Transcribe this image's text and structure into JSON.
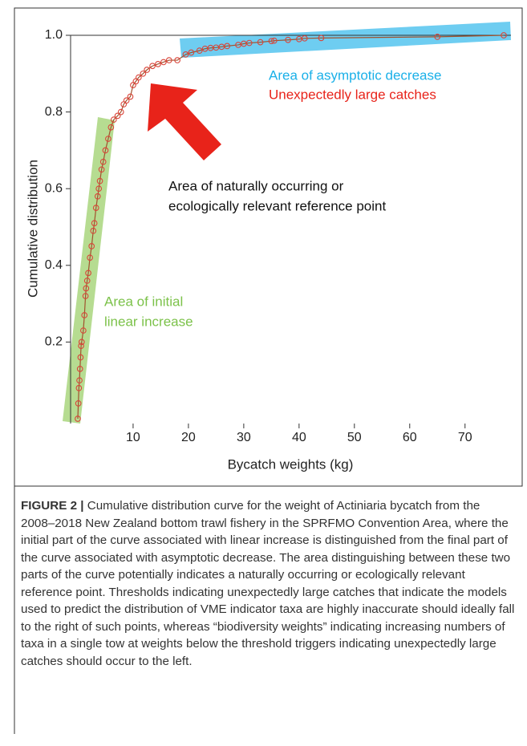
{
  "chart_data": {
    "type": "line",
    "x_label": "Bycatch weights (kg)",
    "y_label": "Cumulative distribution",
    "series": [
      {
        "color": "#d9453a",
        "line_color": "#a0522d",
        "x": [
          0.0,
          0.1,
          0.2,
          0.3,
          0.4,
          0.5,
          0.6,
          0.7,
          1.0,
          1.2,
          1.4,
          1.5,
          1.7,
          1.9,
          2.2,
          2.5,
          2.8,
          3.0,
          3.3,
          3.6,
          3.8,
          4.0,
          4.3,
          4.6,
          5.0,
          5.5,
          6.0,
          6.5,
          7.2,
          7.8,
          8.3,
          8.8,
          9.5,
          10.0,
          10.5,
          11.0,
          11.8,
          12.5,
          13.5,
          14.5,
          15.5,
          16.5,
          18.0,
          19.5,
          20.5,
          22.0,
          23.0,
          24.0,
          25.0,
          26.0,
          27.0,
          29.0,
          30.0,
          31.0,
          33.0,
          35.0,
          35.5,
          38.0,
          40.0,
          41.0,
          44.0,
          65.0,
          77.0
        ],
        "values": [
          0.0,
          0.04,
          0.08,
          0.1,
          0.13,
          0.16,
          0.19,
          0.2,
          0.23,
          0.27,
          0.32,
          0.34,
          0.36,
          0.38,
          0.42,
          0.45,
          0.49,
          0.51,
          0.55,
          0.58,
          0.6,
          0.62,
          0.65,
          0.67,
          0.7,
          0.73,
          0.76,
          0.78,
          0.79,
          0.8,
          0.82,
          0.83,
          0.84,
          0.87,
          0.88,
          0.89,
          0.9,
          0.91,
          0.92,
          0.925,
          0.93,
          0.935,
          0.935,
          0.95,
          0.955,
          0.96,
          0.965,
          0.967,
          0.968,
          0.97,
          0.972,
          0.975,
          0.978,
          0.98,
          0.982,
          0.985,
          0.986,
          0.988,
          0.99,
          0.992,
          0.993,
          0.996,
          1.0
        ]
      }
    ],
    "xlim": [
      -1.3,
      78.3
    ],
    "ylim": [
      0,
      1
    ],
    "xticks": [
      10,
      20,
      30,
      40,
      50,
      60,
      70
    ],
    "yticks": [
      0.2,
      0.4,
      0.6,
      0.8,
      {
        "value": 1,
        "label": "1.0"
      }
    ],
    "annotations": [
      {
        "lines": [
          "Area of asymptotic decrease"
        ],
        "color": "#1ab0e8"
      },
      {
        "lines": [
          "Unexpectedly large catches"
        ],
        "color": "#e8231a"
      },
      {
        "lines": [
          "Area of naturally occurring or",
          "ecologically relevant reference point"
        ],
        "color": "#111111"
      },
      {
        "lines": [
          "Area of initial",
          "linear increase"
        ],
        "color": "#7cc24a"
      }
    ]
  },
  "caption": {
    "label": "FIGURE 2 |",
    "text": "Cumulative distribution curve for the weight of Actiniaria bycatch from the 2008–2018 New Zealand bottom trawl fishery in the SPRFMO Convention Area, where the initial part of the curve associated with linear increase is distinguished from the final part of the curve associated with asymptotic decrease. The area distinguishing between these two parts of the curve potentially indicates a naturally occurring or ecologically relevant reference point. Thresholds indicating unexpectedly large catches that indicate the models used to predict the distribution of VME indicator taxa are highly inaccurate should ideally fall to the right of such points, whereas “biodiversity weights” indicating increasing numbers of taxa in a single tow at weights below the threshold triggers indicating unexpectedly large catches should occur to the left."
  }
}
